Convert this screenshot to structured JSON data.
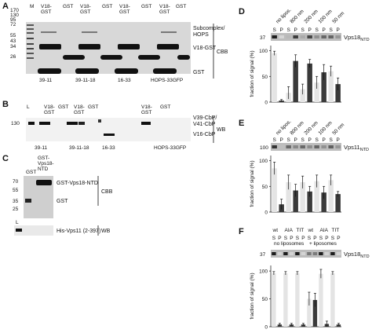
{
  "panels": {
    "A": {
      "letter": "A",
      "mw_header": "M",
      "lane_headers": [
        "V18-\nGST",
        "GST",
        "V18-\nGST",
        "GST",
        "V18-\nGST",
        "GST",
        "V18-\nGST",
        "GST"
      ],
      "mw_markers": [
        "170",
        "130",
        "95",
        "72",
        "55",
        "43",
        "34",
        "26"
      ],
      "band_labels": [
        "Subcomplex/\nHOPS",
        "V18-GST",
        "GST"
      ],
      "gel_type": "CBB",
      "groups": [
        "39-11",
        "39-11-18",
        "16-33",
        "HOPS-33GFP"
      ]
    },
    "B": {
      "letter": "B",
      "lane_headers": [
        "L",
        "V18-\nGST",
        "GST",
        "V18-\nGST",
        "GST",
        "V18-\nGST",
        "GST"
      ],
      "mw_markers": [
        "130"
      ],
      "band_labels": [
        "V39-CbP/\nV41-CbP",
        "V16-CbP"
      ],
      "gel_type": "WB",
      "groups": [
        "39-11",
        "39-11-18",
        "16-33",
        "HOPS-33GFP"
      ]
    },
    "C": {
      "letter": "C",
      "lane_headers": [
        "GST",
        "GST-\nVps18-\nNTD"
      ],
      "mw_markers": [
        "70",
        "55",
        "35",
        "25"
      ],
      "band_labels": [
        "GST-Vps18-NTD",
        "GST"
      ],
      "gel_type": "CBB",
      "wb_lane": "L",
      "wb_label": "His-Vps11 (2-397)",
      "wb_type": "WB"
    },
    "D": {
      "letter": "D",
      "conditions": [
        "no lipos.",
        "800 nm",
        "200 nm",
        "100 nm",
        "50 nm"
      ],
      "sp": [
        "S",
        "P"
      ],
      "blot_marker": "37",
      "blot_label": "Vps18",
      "blot_sub": "NTD",
      "ylabel": "fraction of signal (%)",
      "yticks": [
        "0",
        "50",
        "100"
      ]
    },
    "E": {
      "letter": "E",
      "conditions": [
        "no lipos.",
        "800 nm",
        "200 nm",
        "100 nm",
        "50 nm"
      ],
      "sp": [
        "S",
        "P"
      ],
      "blot_marker": "100",
      "blot_label": "Vps11",
      "blot_sub": "NTD",
      "ylabel": "fraction of signal (%)",
      "yticks": [
        "0",
        "50",
        "100"
      ]
    },
    "F": {
      "letter": "F",
      "conditions": [
        "wt",
        "AIA",
        "TIT",
        "wt",
        "AIA",
        "TIT"
      ],
      "sp": [
        "S",
        "P"
      ],
      "groups": [
        "no liposomes",
        "+ liposomes"
      ],
      "blot_marker": "37",
      "blot_label": "Vps18",
      "blot_sub": "NTD",
      "ylabel": "fraction of signal (%)",
      "yticks": [
        "0",
        "50",
        "100"
      ]
    }
  },
  "chart_data": [
    {
      "type": "bar",
      "panel": "D",
      "categories": [
        "no lipos.",
        "800 nm",
        "200 nm",
        "100 nm",
        "50 nm"
      ],
      "series": [
        {
          "name": "S",
          "values": [
            95,
            18,
            25,
            38,
            60
          ],
          "errors": [
            4,
            12,
            10,
            12,
            10
          ],
          "color": "#e4e4e4"
        },
        {
          "name": "P",
          "values": [
            3,
            80,
            75,
            58,
            35
          ],
          "errors": [
            2,
            12,
            8,
            15,
            12
          ],
          "color": "#3a3a3a"
        }
      ],
      "ylim": [
        0,
        110
      ]
    },
    {
      "type": "bar",
      "panel": "E",
      "categories": [
        "no lipos.",
        "800 nm",
        "200 nm",
        "100 nm",
        "50 nm"
      ],
      "series": [
        {
          "name": "S",
          "values": [
            85,
            58,
            58,
            60,
            62
          ],
          "errors": [
            12,
            14,
            12,
            12,
            10
          ],
          "color": "#e4e4e4"
        },
        {
          "name": "P",
          "values": [
            15,
            42,
            40,
            38,
            35
          ],
          "errors": [
            10,
            12,
            10,
            12,
            5
          ],
          "color": "#3a3a3a"
        }
      ],
      "ylim": [
        0,
        110
      ]
    },
    {
      "type": "bar",
      "panel": "F",
      "categories": [
        "wt",
        "AIA",
        "TIT",
        "wt",
        "AIA",
        "TIT"
      ],
      "series": [
        {
          "name": "S",
          "values": [
            96,
            96,
            96,
            50,
            95,
            96
          ],
          "errors": [
            3,
            3,
            3,
            12,
            8,
            3
          ],
          "color": "#e4e4e4"
        },
        {
          "name": "P",
          "values": [
            4,
            4,
            4,
            48,
            5,
            4
          ],
          "errors": [
            2,
            2,
            2,
            12,
            5,
            2
          ],
          "color": "#3a3a3a"
        }
      ],
      "ylim": [
        0,
        110
      ]
    }
  ]
}
